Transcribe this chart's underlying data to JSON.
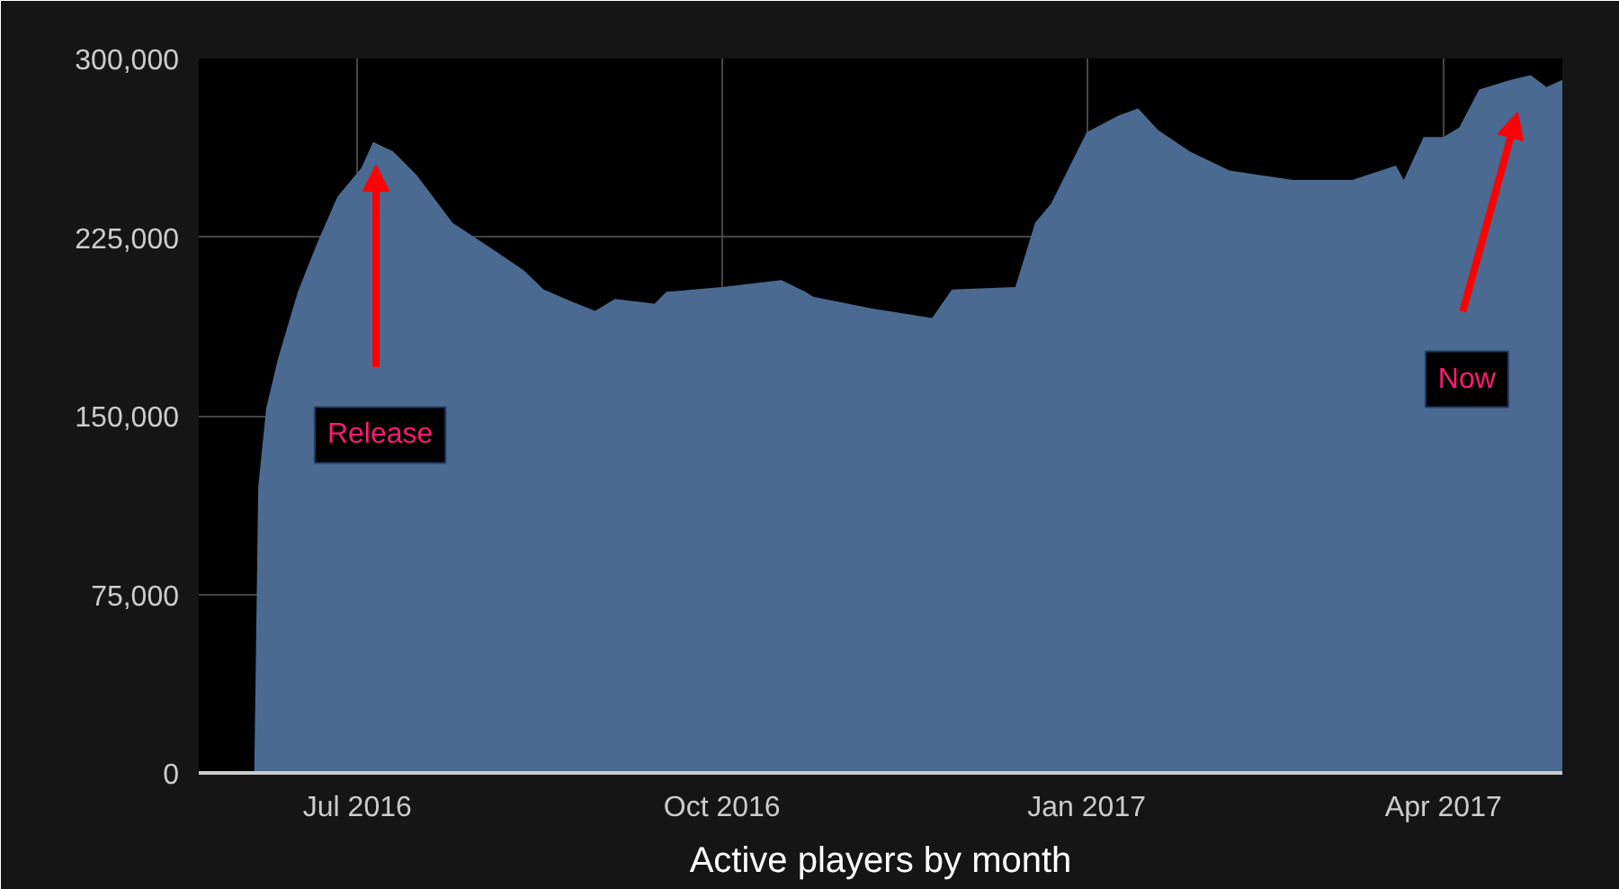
{
  "chart_data": {
    "type": "area",
    "title": "Active players by month",
    "x": [
      "2016-05-22",
      "2016-06-05",
      "2016-06-06",
      "2016-06-08",
      "2016-06-11",
      "2016-06-16",
      "2016-06-21",
      "2016-06-26",
      "2016-07-02",
      "2016-07-05",
      "2016-07-10",
      "2016-07-16",
      "2016-07-25",
      "2016-08-05",
      "2016-08-12",
      "2016-08-17",
      "2016-08-24",
      "2016-08-30",
      "2016-09-04",
      "2016-09-14",
      "2016-09-17",
      "2016-10-01",
      "2016-10-16",
      "2016-10-22",
      "2016-10-24",
      "2016-11-08",
      "2016-11-23",
      "2016-11-28",
      "2016-12-14",
      "2016-12-19",
      "2016-12-23",
      "2017-01-01",
      "2017-01-09",
      "2017-01-14",
      "2017-01-19",
      "2017-01-27",
      "2017-02-06",
      "2017-02-22",
      "2017-03-09",
      "2017-03-20",
      "2017-03-22",
      "2017-03-27",
      "2017-04-01",
      "2017-04-05",
      "2017-04-10",
      "2017-04-18",
      "2017-04-23",
      "2017-04-27",
      "2017-05-01"
    ],
    "values": [
      0,
      0,
      120000,
      153000,
      174000,
      202000,
      223000,
      242000,
      254000,
      265000,
      261000,
      251000,
      231000,
      219000,
      211000,
      203000,
      198000,
      194000,
      199000,
      197000,
      202000,
      204000,
      207000,
      202000,
      200000,
      195000,
      191000,
      203000,
      204000,
      231000,
      239000,
      269000,
      276000,
      279000,
      270000,
      261000,
      253000,
      249000,
      249000,
      255000,
      249000,
      267000,
      267000,
      271000,
      287000,
      291000,
      293000,
      288000,
      291000
    ],
    "color": "#4a6a91",
    "xlim": [
      "2016-05-22",
      "2017-05-01"
    ],
    "xticks": [
      {
        "value": "2016-07-01",
        "label": "Jul 2016"
      },
      {
        "value": "2016-10-01",
        "label": "Oct 2016"
      },
      {
        "value": "2017-01-01",
        "label": "Jan 2017"
      },
      {
        "value": "2017-04-01",
        "label": "Apr 2017"
      }
    ],
    "ylim": [
      0,
      300000
    ],
    "yticks": [
      0,
      {
        "value": 75000,
        "label": "75,000"
      },
      {
        "value": 150000,
        "label": "150,000"
      },
      {
        "value": 225000,
        "label": "225,000"
      },
      {
        "value": 300000,
        "label": "300,000"
      }
    ],
    "grid": true,
    "annotations": [
      "Release",
      "Now"
    ]
  }
}
